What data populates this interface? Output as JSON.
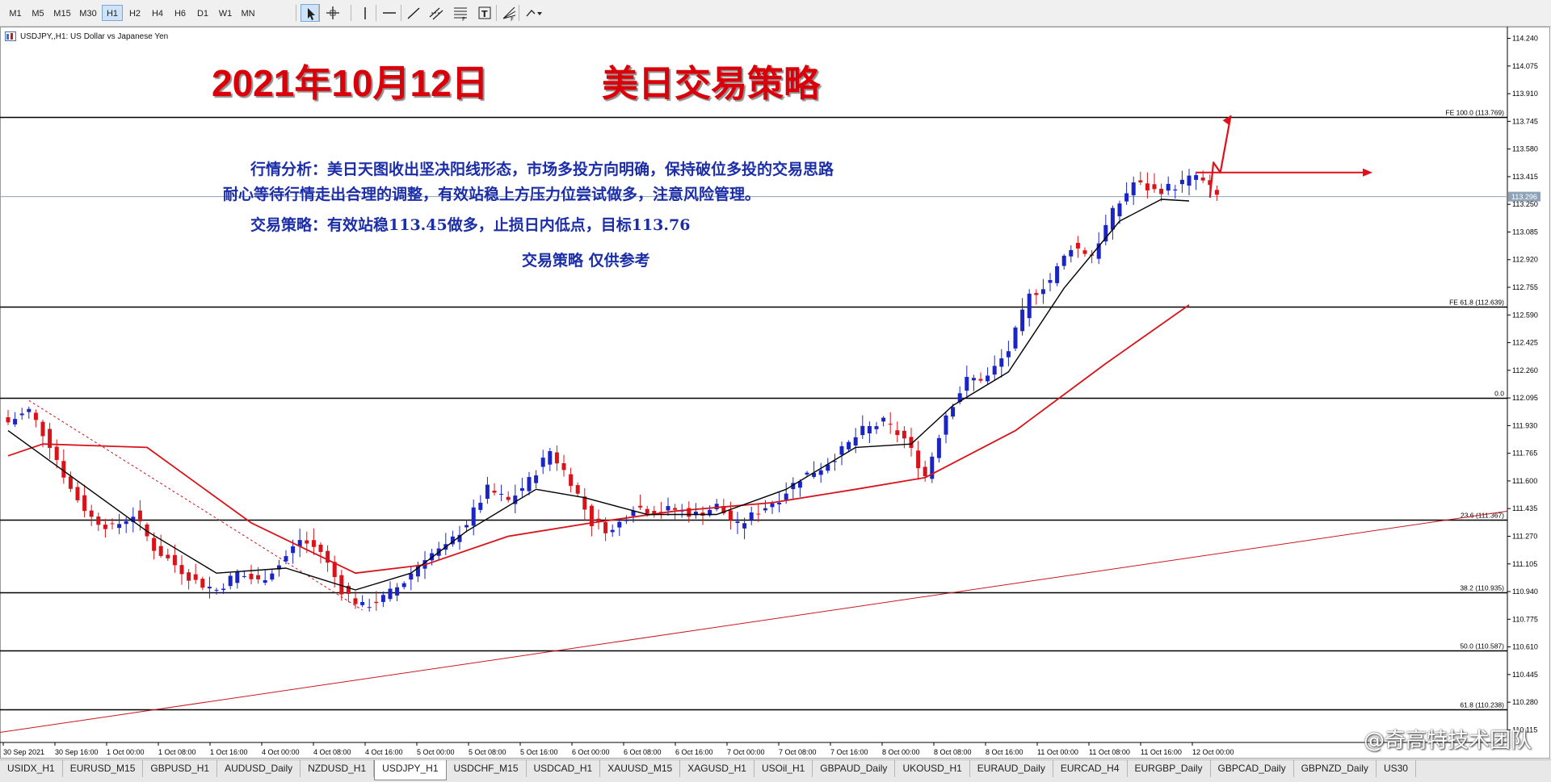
{
  "toolbar": {
    "timeframes": [
      "M1",
      "M5",
      "M15",
      "M30",
      "H1",
      "H2",
      "H4",
      "H6",
      "D1",
      "W1",
      "MN"
    ],
    "active_timeframe": "H1",
    "tools": [
      {
        "name": "cursor-icon",
        "active": true
      },
      {
        "name": "crosshair-icon",
        "active": false
      },
      {
        "name": "vertical-line-icon",
        "active": false
      },
      {
        "name": "horizontal-line-icon",
        "active": false
      },
      {
        "name": "trend-line-icon",
        "active": false
      },
      {
        "name": "equidistant-channel-icon",
        "active": false
      },
      {
        "name": "fibonacci-retracement-icon",
        "active": false
      },
      {
        "name": "text-label-icon",
        "active": false
      },
      {
        "name": "fibonacci-fan-icon",
        "active": false
      },
      {
        "name": "shapes-menu-icon",
        "active": false
      }
    ]
  },
  "chart": {
    "symbol_caption": "USDJPY,,H1:  US Dollar vs Japanese Yen",
    "title_date": "2021年10月12日",
    "title_pair": "美日交易策略",
    "analysis_line1": "行情分析：美日天图收出坚决阳线形态，市场多投方向明确，保持破位多投的交易思路",
    "analysis_line2": "耐心等待行情走出合理的调整，有效站稳上方压力位尝试做多，注意风险管理。",
    "strategy": "交易策略：有效站稳113.45做多，止损日内低点，目标113.76",
    "disclaimer": "交易策略  仅供参考",
    "current_price": "113.296",
    "colors": {
      "bull": "#1a25c4",
      "bear": "#d8131a",
      "ma_fast": "#000000",
      "ma_slow": "#d8131a",
      "title": "#d9000a",
      "text": "#1b2ea8"
    }
  },
  "chart_data": {
    "type": "candlestick",
    "symbol": "USDJPY",
    "timeframe": "H1",
    "ylim": [
      110.04,
      114.31
    ],
    "y_ticks": [
      114.24,
      114.075,
      113.91,
      113.745,
      113.58,
      113.415,
      113.25,
      113.085,
      112.92,
      112.755,
      112.59,
      112.425,
      112.26,
      112.095,
      111.93,
      111.765,
      111.6,
      111.435,
      111.27,
      111.105,
      110.94,
      110.775,
      110.61,
      110.445,
      110.28,
      110.115
    ],
    "x_ticks": [
      "30 Sep 2021",
      "30 Sep 16:00",
      "1 Oct 00:00",
      "1 Oct 08:00",
      "1 Oct 16:00",
      "4 Oct 00:00",
      "4 Oct 08:00",
      "4 Oct 16:00",
      "5 Oct 00:00",
      "5 Oct 08:00",
      "5 Oct 16:00",
      "6 Oct 00:00",
      "6 Oct 08:00",
      "6 Oct 16:00",
      "7 Oct 00:00",
      "7 Oct 08:00",
      "7 Oct 16:00",
      "8 Oct 00:00",
      "8 Oct 08:00",
      "8 Oct 16:00",
      "11 Oct 00:00",
      "11 Oct 08:00",
      "11 Oct 16:00",
      "12 Oct 00:00"
    ],
    "fibo_levels": [
      {
        "label": "FE 100.0 (113.769)",
        "price": 113.769
      },
      {
        "label": "FE 61.8 (112.639)",
        "price": 112.639
      },
      {
        "label": "0.0",
        "price": 112.095
      },
      {
        "label": "23.6 (111.367)",
        "price": 111.367
      },
      {
        "label": "38.2 (110.935)",
        "price": 110.935
      },
      {
        "label": "50.0 (110.587)",
        "price": 110.587
      },
      {
        "label": "61.8 (110.238)",
        "price": 110.238
      }
    ],
    "close_path": [
      [
        0,
        111.95
      ],
      [
        3,
        112.02
      ],
      [
        6,
        111.82
      ],
      [
        9,
        111.55
      ],
      [
        12,
        111.38
      ],
      [
        15,
        111.32
      ],
      [
        18,
        111.4
      ],
      [
        21,
        111.2
      ],
      [
        24,
        111.1
      ],
      [
        27,
        111.0
      ],
      [
        30,
        110.95
      ],
      [
        33,
        111.05
      ],
      [
        36,
        111.0
      ],
      [
        39,
        111.1
      ],
      [
        42,
        111.25
      ],
      [
        45,
        111.18
      ],
      [
        48,
        110.95
      ],
      [
        51,
        110.85
      ],
      [
        54,
        110.9
      ],
      [
        57,
        111.0
      ],
      [
        60,
        111.15
      ],
      [
        63,
        111.2
      ],
      [
        66,
        111.35
      ],
      [
        69,
        111.55
      ],
      [
        72,
        111.48
      ],
      [
        75,
        111.6
      ],
      [
        78,
        111.78
      ],
      [
        81,
        111.6
      ],
      [
        84,
        111.35
      ],
      [
        87,
        111.3
      ],
      [
        90,
        111.45
      ],
      [
        93,
        111.42
      ],
      [
        96,
        111.43
      ],
      [
        99,
        111.4
      ],
      [
        102,
        111.45
      ],
      [
        105,
        111.33
      ],
      [
        108,
        111.42
      ],
      [
        111,
        111.5
      ],
      [
        114,
        111.62
      ],
      [
        117,
        111.68
      ],
      [
        120,
        111.78
      ],
      [
        123,
        111.9
      ],
      [
        126,
        111.95
      ],
      [
        129,
        111.85
      ],
      [
        132,
        111.63
      ],
      [
        135,
        112.0
      ],
      [
        138,
        112.2
      ],
      [
        141,
        112.22
      ],
      [
        144,
        112.38
      ],
      [
        147,
        112.7
      ],
      [
        150,
        112.8
      ],
      [
        153,
        113.0
      ],
      [
        156,
        112.95
      ],
      [
        159,
        113.2
      ],
      [
        162,
        113.38
      ],
      [
        165,
        113.33
      ],
      [
        168,
        113.36
      ],
      [
        171,
        113.42
      ],
      [
        174,
        113.3
      ]
    ],
    "ma_fast": [
      [
        0,
        111.9
      ],
      [
        10,
        111.6
      ],
      [
        20,
        111.3
      ],
      [
        30,
        111.05
      ],
      [
        40,
        111.08
      ],
      [
        50,
        110.95
      ],
      [
        58,
        111.05
      ],
      [
        66,
        111.3
      ],
      [
        76,
        111.55
      ],
      [
        83,
        111.5
      ],
      [
        92,
        111.4
      ],
      [
        102,
        111.4
      ],
      [
        112,
        111.55
      ],
      [
        122,
        111.8
      ],
      [
        130,
        111.82
      ],
      [
        136,
        112.05
      ],
      [
        144,
        112.25
      ],
      [
        152,
        112.75
      ],
      [
        160,
        113.15
      ],
      [
        166,
        113.28
      ],
      [
        170,
        113.27
      ]
    ],
    "ma_slow": [
      [
        0,
        111.75
      ],
      [
        5,
        111.82
      ],
      [
        20,
        111.8
      ],
      [
        35,
        111.35
      ],
      [
        50,
        111.05
      ],
      [
        60,
        111.1
      ],
      [
        72,
        111.27
      ],
      [
        84,
        111.35
      ],
      [
        96,
        111.42
      ],
      [
        110,
        111.47
      ],
      [
        122,
        111.55
      ],
      [
        132,
        111.62
      ],
      [
        145,
        111.9
      ],
      [
        158,
        112.3
      ],
      [
        170,
        112.65
      ]
    ],
    "trendline": [
      [
        110.1,
        0
      ],
      [
        111.42,
        1
      ]
    ],
    "projection_arrow": [
      [
        173,
        113.29
      ],
      [
        173.5,
        113.5
      ],
      [
        174.5,
        113.44
      ],
      [
        176,
        113.78
      ]
    ],
    "target_arrow": {
      "price": 113.44,
      "x_from": 171,
      "x_to": 195
    }
  },
  "tabs": {
    "items": [
      "USIDX_H1",
      "EURUSD_M15",
      "GBPUSD_H1",
      "AUDUSD_Daily",
      "NZDUSD_H1",
      "USDJPY_H1",
      "USDCHF_M15",
      "USDCAD_H1",
      "XAUUSD_M15",
      "XAGUSD_H1",
      "USOil_H1",
      "GBPAUD_Daily",
      "UKOUSD_H1",
      "EURAUD_Daily",
      "EURCAD_H4",
      "EURGBP_Daily",
      "GBPCAD_Daily",
      "GBPNZD_Daily",
      "US30"
    ],
    "active": "USDJPY_H1"
  },
  "watermark": "@奇高特技术团队"
}
